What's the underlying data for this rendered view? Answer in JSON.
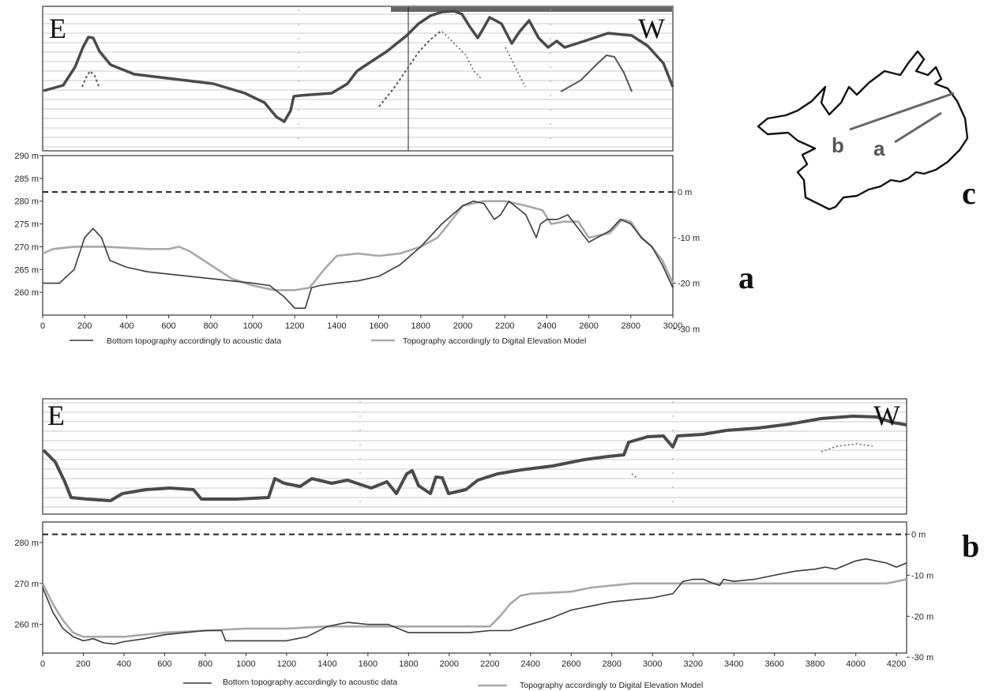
{
  "panel_labels": {
    "a": "a",
    "b": "b",
    "c": "c"
  },
  "echogram_labels": {
    "east": "E",
    "west": "W"
  },
  "map_labels": {
    "a": "a",
    "b": "b"
  },
  "legend": {
    "acoustic": "Bottom topography accordingly to acoustic data",
    "dem": "Topography accordingly to Digital Elevation Model"
  },
  "colors": {
    "acoustic": "#3a3a3a",
    "dem": "#a8a8a8",
    "datum": "#222222"
  },
  "chart_data": [
    {
      "type": "line",
      "panel": "a",
      "grid": false,
      "legend_position": "bottom",
      "xlim": [
        0,
        3000
      ],
      "ylim": [
        255,
        290
      ],
      "x_ticks": [
        0,
        200,
        400,
        600,
        800,
        1000,
        1200,
        1400,
        1600,
        1800,
        2000,
        2200,
        2400,
        2600,
        2800,
        3000
      ],
      "y_ticks": [
        260,
        265,
        270,
        275,
        280,
        285,
        290
      ],
      "y_tick_labels": [
        "260 m",
        "265 m",
        "270 m",
        "275 m",
        "280 m",
        "285 m",
        "290 m"
      ],
      "right_axis": {
        "zero_level": 282,
        "ticks": [
          282,
          272,
          262,
          252
        ],
        "tick_labels": [
          "0 m",
          "-10 m",
          "-20 m",
          "-30 m"
        ]
      },
      "series": [
        {
          "name": "Bottom topography accordingly to acoustic data",
          "x": [
            0,
            80,
            150,
            200,
            240,
            280,
            320,
            400,
            500,
            600,
            700,
            800,
            900,
            1000,
            1080,
            1150,
            1200,
            1250,
            1280,
            1320,
            1400,
            1500,
            1600,
            1700,
            1800,
            1900,
            2000,
            2050,
            2100,
            2150,
            2180,
            2220,
            2260,
            2300,
            2350,
            2370,
            2400,
            2450,
            2500,
            2550,
            2600,
            2700,
            2750,
            2800,
            2850,
            2900,
            2950,
            3000
          ],
          "y": [
            262,
            262,
            265,
            272,
            274,
            272,
            267,
            265.5,
            264.5,
            264,
            263.5,
            263,
            262.5,
            262,
            261.5,
            259,
            256.5,
            256.5,
            261,
            261.5,
            262,
            262.5,
            263.5,
            266,
            270,
            275,
            279,
            280,
            279.5,
            276,
            277,
            280,
            278.5,
            277,
            272,
            275,
            276,
            276,
            277,
            274,
            271,
            273.5,
            276,
            275,
            272,
            270,
            266,
            261
          ]
        },
        {
          "name": "Topography accordingly to Digital Elevation Model",
          "x": [
            0,
            50,
            150,
            300,
            500,
            600,
            650,
            700,
            800,
            900,
            1000,
            1100,
            1200,
            1270,
            1340,
            1400,
            1500,
            1600,
            1700,
            1800,
            1880,
            1950,
            2000,
            2100,
            2200,
            2250,
            2300,
            2380,
            2420,
            2480,
            2550,
            2600,
            2700,
            2760,
            2800,
            2850,
            2900,
            2950,
            3000
          ],
          "y": [
            268.5,
            269.5,
            270,
            270,
            269.5,
            269.5,
            270,
            269,
            266,
            263,
            261.5,
            260.5,
            260.5,
            261,
            265,
            268,
            268.5,
            268,
            268.5,
            270,
            272,
            276,
            279,
            280,
            280,
            279.5,
            279,
            278,
            275,
            275.5,
            275.5,
            272,
            273,
            276,
            275.5,
            272,
            270,
            267,
            262
          ]
        }
      ]
    },
    {
      "type": "line",
      "panel": "b",
      "grid": false,
      "legend_position": "bottom",
      "xlim": [
        0,
        4250
      ],
      "ylim": [
        253,
        285
      ],
      "x_ticks": [
        0,
        200,
        400,
        600,
        800,
        1000,
        1200,
        1400,
        1600,
        1800,
        2000,
        2200,
        2400,
        2600,
        2800,
        3000,
        3200,
        3400,
        3600,
        3800,
        4000,
        4200
      ],
      "y_ticks": [
        260,
        270,
        280
      ],
      "y_tick_labels": [
        "260 m",
        "270 m",
        "280 m"
      ],
      "right_axis": {
        "zero_level": 282,
        "ticks": [
          282,
          272,
          262,
          252
        ],
        "tick_labels": [
          "0 m",
          "-10 m",
          "-20 m",
          "-30 m"
        ]
      },
      "series": [
        {
          "name": "Bottom topography accordingly to acoustic data",
          "x": [
            0,
            50,
            100,
            150,
            200,
            250,
            300,
            350,
            400,
            500,
            600,
            700,
            800,
            880,
            900,
            1000,
            1100,
            1200,
            1250,
            1300,
            1400,
            1500,
            1600,
            1700,
            1800,
            1900,
            2000,
            2100,
            2200,
            2300,
            2400,
            2500,
            2600,
            2700,
            2800,
            3000,
            3050,
            3100,
            3150,
            3200,
            3250,
            3300,
            3330,
            3350,
            3400,
            3500,
            3600,
            3700,
            3800,
            3850,
            3900,
            4000,
            4050,
            4100,
            4150,
            4200,
            4250
          ],
          "y": [
            269,
            263,
            259,
            257,
            256,
            256.5,
            255.5,
            255.2,
            255.8,
            256.5,
            257.5,
            258,
            258.5,
            258.5,
            256,
            256,
            256,
            256,
            256.5,
            257,
            259.5,
            260.5,
            260,
            260,
            258,
            258,
            258,
            258,
            258.5,
            258.5,
            260,
            261.5,
            263.5,
            264.5,
            265.5,
            266.5,
            267,
            267.5,
            270.5,
            271,
            271,
            270,
            269.5,
            271,
            270.5,
            271,
            272,
            273,
            273.5,
            274,
            273.5,
            275.5,
            276,
            275.5,
            275,
            274,
            275
          ]
        },
        {
          "name": "Topography accordingly to Digital Elevation Model",
          "x": [
            0,
            50,
            100,
            150,
            200,
            300,
            400,
            500,
            600,
            800,
            1000,
            1200,
            1400,
            1600,
            1800,
            2000,
            2200,
            2250,
            2300,
            2350,
            2400,
            2600,
            2700,
            2800,
            2900,
            3000,
            3200,
            3600,
            4000,
            4150,
            4250
          ],
          "y": [
            270,
            265,
            261,
            258,
            257,
            257,
            257,
            257.5,
            258,
            258.5,
            259,
            259,
            259.5,
            259.5,
            259.5,
            259.5,
            259.5,
            262,
            265,
            267,
            267.5,
            268,
            269,
            269.5,
            270,
            270,
            270,
            270,
            270,
            270,
            271
          ]
        }
      ]
    }
  ]
}
